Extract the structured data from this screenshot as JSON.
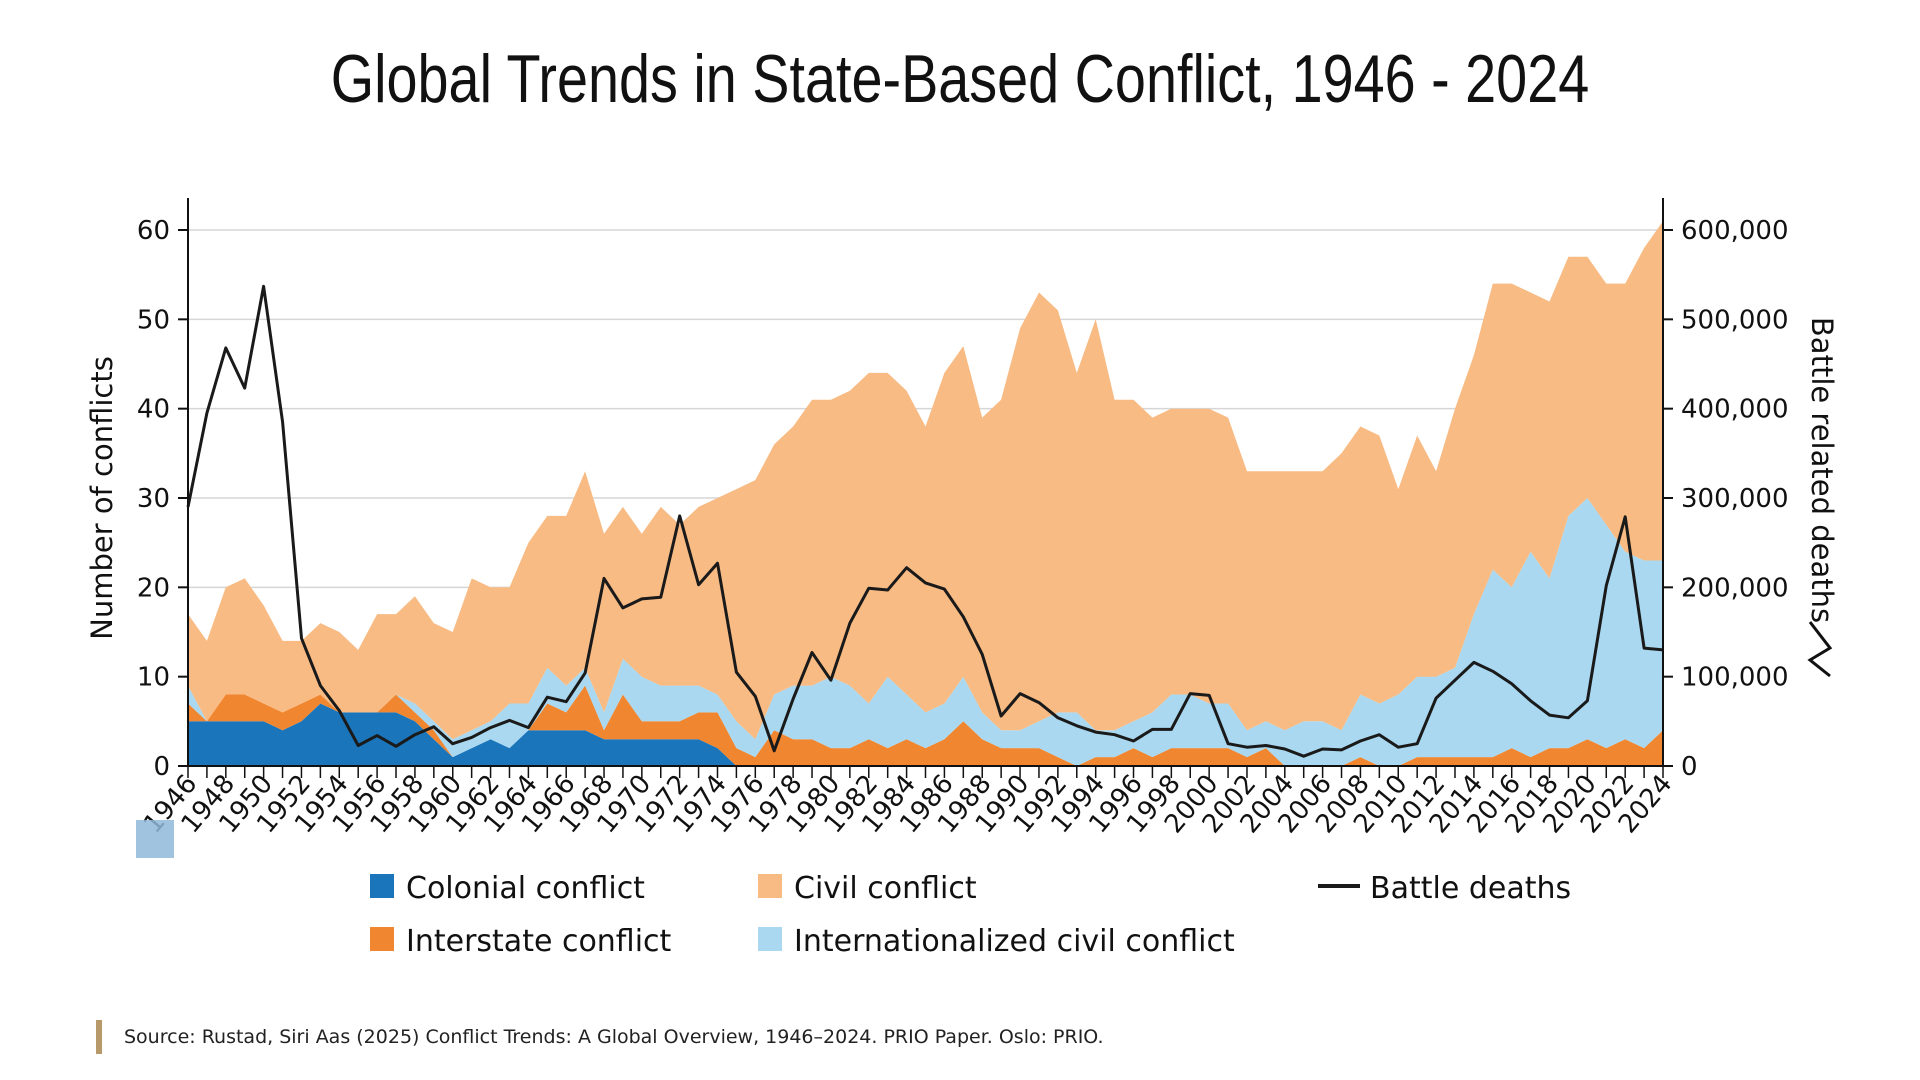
{
  "page": {
    "title": "Global Trends in State-Based Conflict, 1946 - 2024",
    "source": "Source: Rustad, Siri Aas (2025) Conflict Trends: A Global Overview, 1946–2024. PRIO Paper. Oslo: PRIO."
  },
  "chart_data": {
    "type": "area",
    "ylabel": "Number of conflicts",
    "y2label": "Battle related deaths",
    "ylim": [
      0,
      60
    ],
    "y2lim": [
      0,
      600000
    ],
    "yticks": [
      0,
      10,
      20,
      30,
      40,
      50,
      60
    ],
    "y2ticks": [
      "0",
      "100,000",
      "200,000",
      "300,000",
      "400,000",
      "500,000",
      "600,000"
    ],
    "y2tick_values": [
      0,
      100000,
      200000,
      300000,
      400000,
      500000,
      600000
    ],
    "grid": true,
    "x": [
      1946,
      1947,
      1948,
      1949,
      1950,
      1951,
      1952,
      1953,
      1954,
      1955,
      1956,
      1957,
      1958,
      1959,
      1960,
      1961,
      1962,
      1963,
      1964,
      1965,
      1966,
      1967,
      1968,
      1969,
      1970,
      1971,
      1972,
      1973,
      1974,
      1975,
      1976,
      1977,
      1978,
      1979,
      1980,
      1981,
      1982,
      1983,
      1984,
      1985,
      1986,
      1987,
      1988,
      1989,
      1990,
      1991,
      1992,
      1993,
      1994,
      1995,
      1996,
      1997,
      1998,
      1999,
      2000,
      2001,
      2002,
      2003,
      2004,
      2005,
      2006,
      2007,
      2008,
      2009,
      2010,
      2011,
      2012,
      2013,
      2014,
      2015,
      2016,
      2017,
      2018,
      2019,
      2020,
      2021,
      2022,
      2023,
      2024
    ],
    "xticks": [
      "1946",
      "1948",
      "1950",
      "1952",
      "1954",
      "1956",
      "1958",
      "1960",
      "1962",
      "1964",
      "1966",
      "1968",
      "1970",
      "1972",
      "1974",
      "1976",
      "1978",
      "1980",
      "1982",
      "1984",
      "1986",
      "1988",
      "1990",
      "1992",
      "1994",
      "1996",
      "1998",
      "2000",
      "2002",
      "2004",
      "2006",
      "2008",
      "2010",
      "2012",
      "2014",
      "2016",
      "2018",
      "2020",
      "2022",
      "2024"
    ],
    "legend": {
      "placement": "bottom",
      "entries": [
        {
          "label": "Colonial conflict",
          "key": "colonial"
        },
        {
          "label": "Civil conflict",
          "key": "civil"
        },
        {
          "label": "Battle deaths",
          "key": "deaths"
        },
        {
          "label": "Interstate conflict",
          "key": "interstate"
        },
        {
          "label": "Internationalized civil conflict",
          "key": "internationalized"
        }
      ]
    },
    "series": [
      {
        "name": "Colonial conflict",
        "key": "colonial",
        "color": "#1a75bb",
        "stack": true,
        "values": [
          5,
          5,
          5,
          5,
          5,
          4,
          5,
          7,
          6,
          6,
          6,
          6,
          5,
          3,
          1,
          2,
          3,
          2,
          4,
          4,
          4,
          4,
          3,
          3,
          3,
          3,
          3,
          3,
          2,
          0,
          0,
          0,
          0,
          0,
          0,
          0,
          0,
          0,
          0,
          0,
          0,
          0,
          0,
          0,
          0,
          0,
          0,
          0,
          0,
          0,
          0,
          0,
          0,
          0,
          0,
          0,
          0,
          0,
          0,
          0,
          0,
          0,
          0,
          0,
          0,
          0,
          0,
          0,
          0,
          0,
          0,
          0,
          0,
          0,
          0,
          0,
          0,
          0,
          0
        ]
      },
      {
        "name": "Interstate conflict",
        "key": "interstate",
        "color": "#f0862f",
        "stack": true,
        "values": [
          2,
          0,
          3,
          3,
          2,
          2,
          2,
          1,
          0,
          0,
          0,
          2,
          1,
          1,
          0,
          0,
          0,
          0,
          0,
          3,
          2,
          5,
          1,
          5,
          2,
          2,
          2,
          3,
          4,
          2,
          1,
          4,
          3,
          3,
          2,
          2,
          3,
          2,
          3,
          2,
          3,
          5,
          3,
          2,
          2,
          2,
          1,
          0,
          1,
          1,
          2,
          1,
          2,
          2,
          2,
          2,
          1,
          2,
          0,
          0,
          0,
          0,
          1,
          0,
          0,
          1,
          1,
          1,
          1,
          1,
          2,
          1,
          2,
          2,
          3,
          2,
          3,
          2,
          4
        ]
      },
      {
        "name": "Internationalized civil conflict",
        "key": "internationalized",
        "color": "#a9d8f0",
        "stack": true,
        "values": [
          2,
          0,
          0,
          0,
          0,
          0,
          0,
          0,
          0,
          0,
          0,
          0,
          1,
          1,
          2,
          2,
          2,
          5,
          3,
          4,
          3,
          2,
          2,
          4,
          5,
          4,
          4,
          3,
          2,
          3,
          2,
          4,
          6,
          6,
          8,
          7,
          4,
          8,
          5,
          4,
          4,
          5,
          3,
          2,
          2,
          3,
          5,
          6,
          3,
          3,
          3,
          5,
          6,
          6,
          5,
          5,
          3,
          3,
          4,
          5,
          5,
          4,
          7,
          7,
          8,
          9,
          9,
          10,
          16,
          21,
          18,
          23,
          19,
          26,
          27,
          25,
          21,
          21,
          19
        ]
      },
      {
        "name": "Civil conflict",
        "key": "civil",
        "color": "#f8bb84",
        "stack": true,
        "values": [
          8,
          9,
          12,
          13,
          11,
          8,
          7,
          8,
          9,
          7,
          11,
          9,
          12,
          11,
          12,
          17,
          15,
          13,
          18,
          17,
          19,
          22,
          20,
          17,
          16,
          20,
          18,
          20,
          22,
          26,
          29,
          28,
          29,
          32,
          31,
          33,
          37,
          34,
          34,
          32,
          37,
          37,
          33,
          37,
          45,
          48,
          45,
          38,
          46,
          37,
          36,
          33,
          32,
          32,
          33,
          32,
          29,
          28,
          29,
          28,
          28,
          31,
          30,
          30,
          23,
          27,
          23,
          29,
          29,
          32,
          34,
          29,
          31,
          29,
          27,
          27,
          30,
          35,
          38
        ]
      },
      {
        "name": "Battle deaths",
        "key": "deaths",
        "color": "#1a1a1a",
        "axis": "right",
        "values": [
          290000,
          395000,
          468000,
          423000,
          537000,
          385000,
          143000,
          90000,
          62000,
          23000,
          34000,
          22000,
          35000,
          44000,
          25000,
          32000,
          43000,
          51000,
          43000,
          77000,
          72000,
          104000,
          210000,
          177000,
          187000,
          189000,
          280000,
          203000,
          227000,
          105000,
          78000,
          17000,
          75000,
          127000,
          96000,
          160000,
          199000,
          197000,
          222000,
          205000,
          198000,
          167000,
          125000,
          56000,
          81000,
          71000,
          54000,
          45000,
          38000,
          35000,
          28000,
          41000,
          41000,
          81000,
          79000,
          25000,
          21000,
          23000,
          19000,
          11000,
          19000,
          18000,
          28000,
          35000,
          21000,
          25000,
          76000,
          96000,
          116000,
          106000,
          92000,
          73000,
          57000,
          54000,
          73000,
          202000,
          279000,
          132000,
          130000
        ]
      }
    ]
  }
}
